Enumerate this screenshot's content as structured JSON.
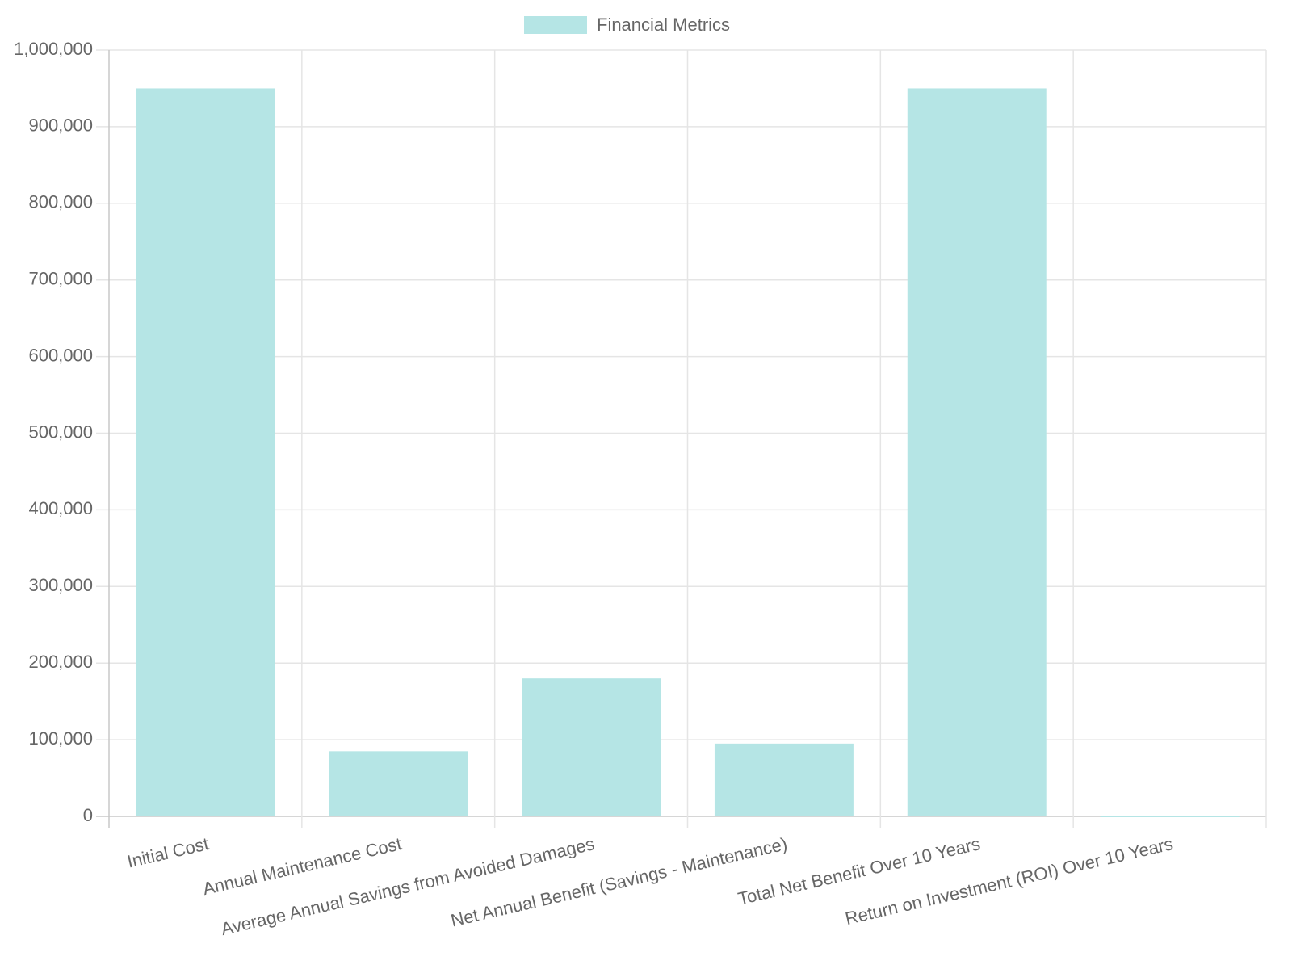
{
  "chart_data": {
    "type": "bar",
    "categories": [
      "Initial Cost",
      "Annual Maintenance Cost",
      "Average Annual Savings from Avoided Damages",
      "Net Annual Benefit (Savings - Maintenance)",
      "Total Net Benefit Over 10 Years",
      "Return on Investment (ROI) Over 10 Years"
    ],
    "series": [
      {
        "name": "Financial Metrics",
        "color": "#b5e5e5",
        "values": [
          950000,
          85000,
          180000,
          95000,
          950000,
          1
        ]
      }
    ],
    "ylim": [
      0,
      1000000
    ],
    "yticks": [
      0,
      {
        "value": 100000,
        "label": "100,000"
      },
      {
        "value": 200000,
        "label": "200,000"
      },
      {
        "value": 300000,
        "label": "300,000"
      },
      {
        "value": 400000,
        "label": "400,000"
      },
      {
        "value": 500000,
        "label": "500,000"
      },
      {
        "value": 600000,
        "label": "600,000"
      },
      {
        "value": 700000,
        "label": "700,000"
      },
      {
        "value": 800000,
        "label": "800,000"
      },
      {
        "value": 900000,
        "label": "900,000"
      },
      {
        "value": 1000000,
        "label": "1,000,000"
      }
    ],
    "grid": true,
    "legend": "top"
  }
}
